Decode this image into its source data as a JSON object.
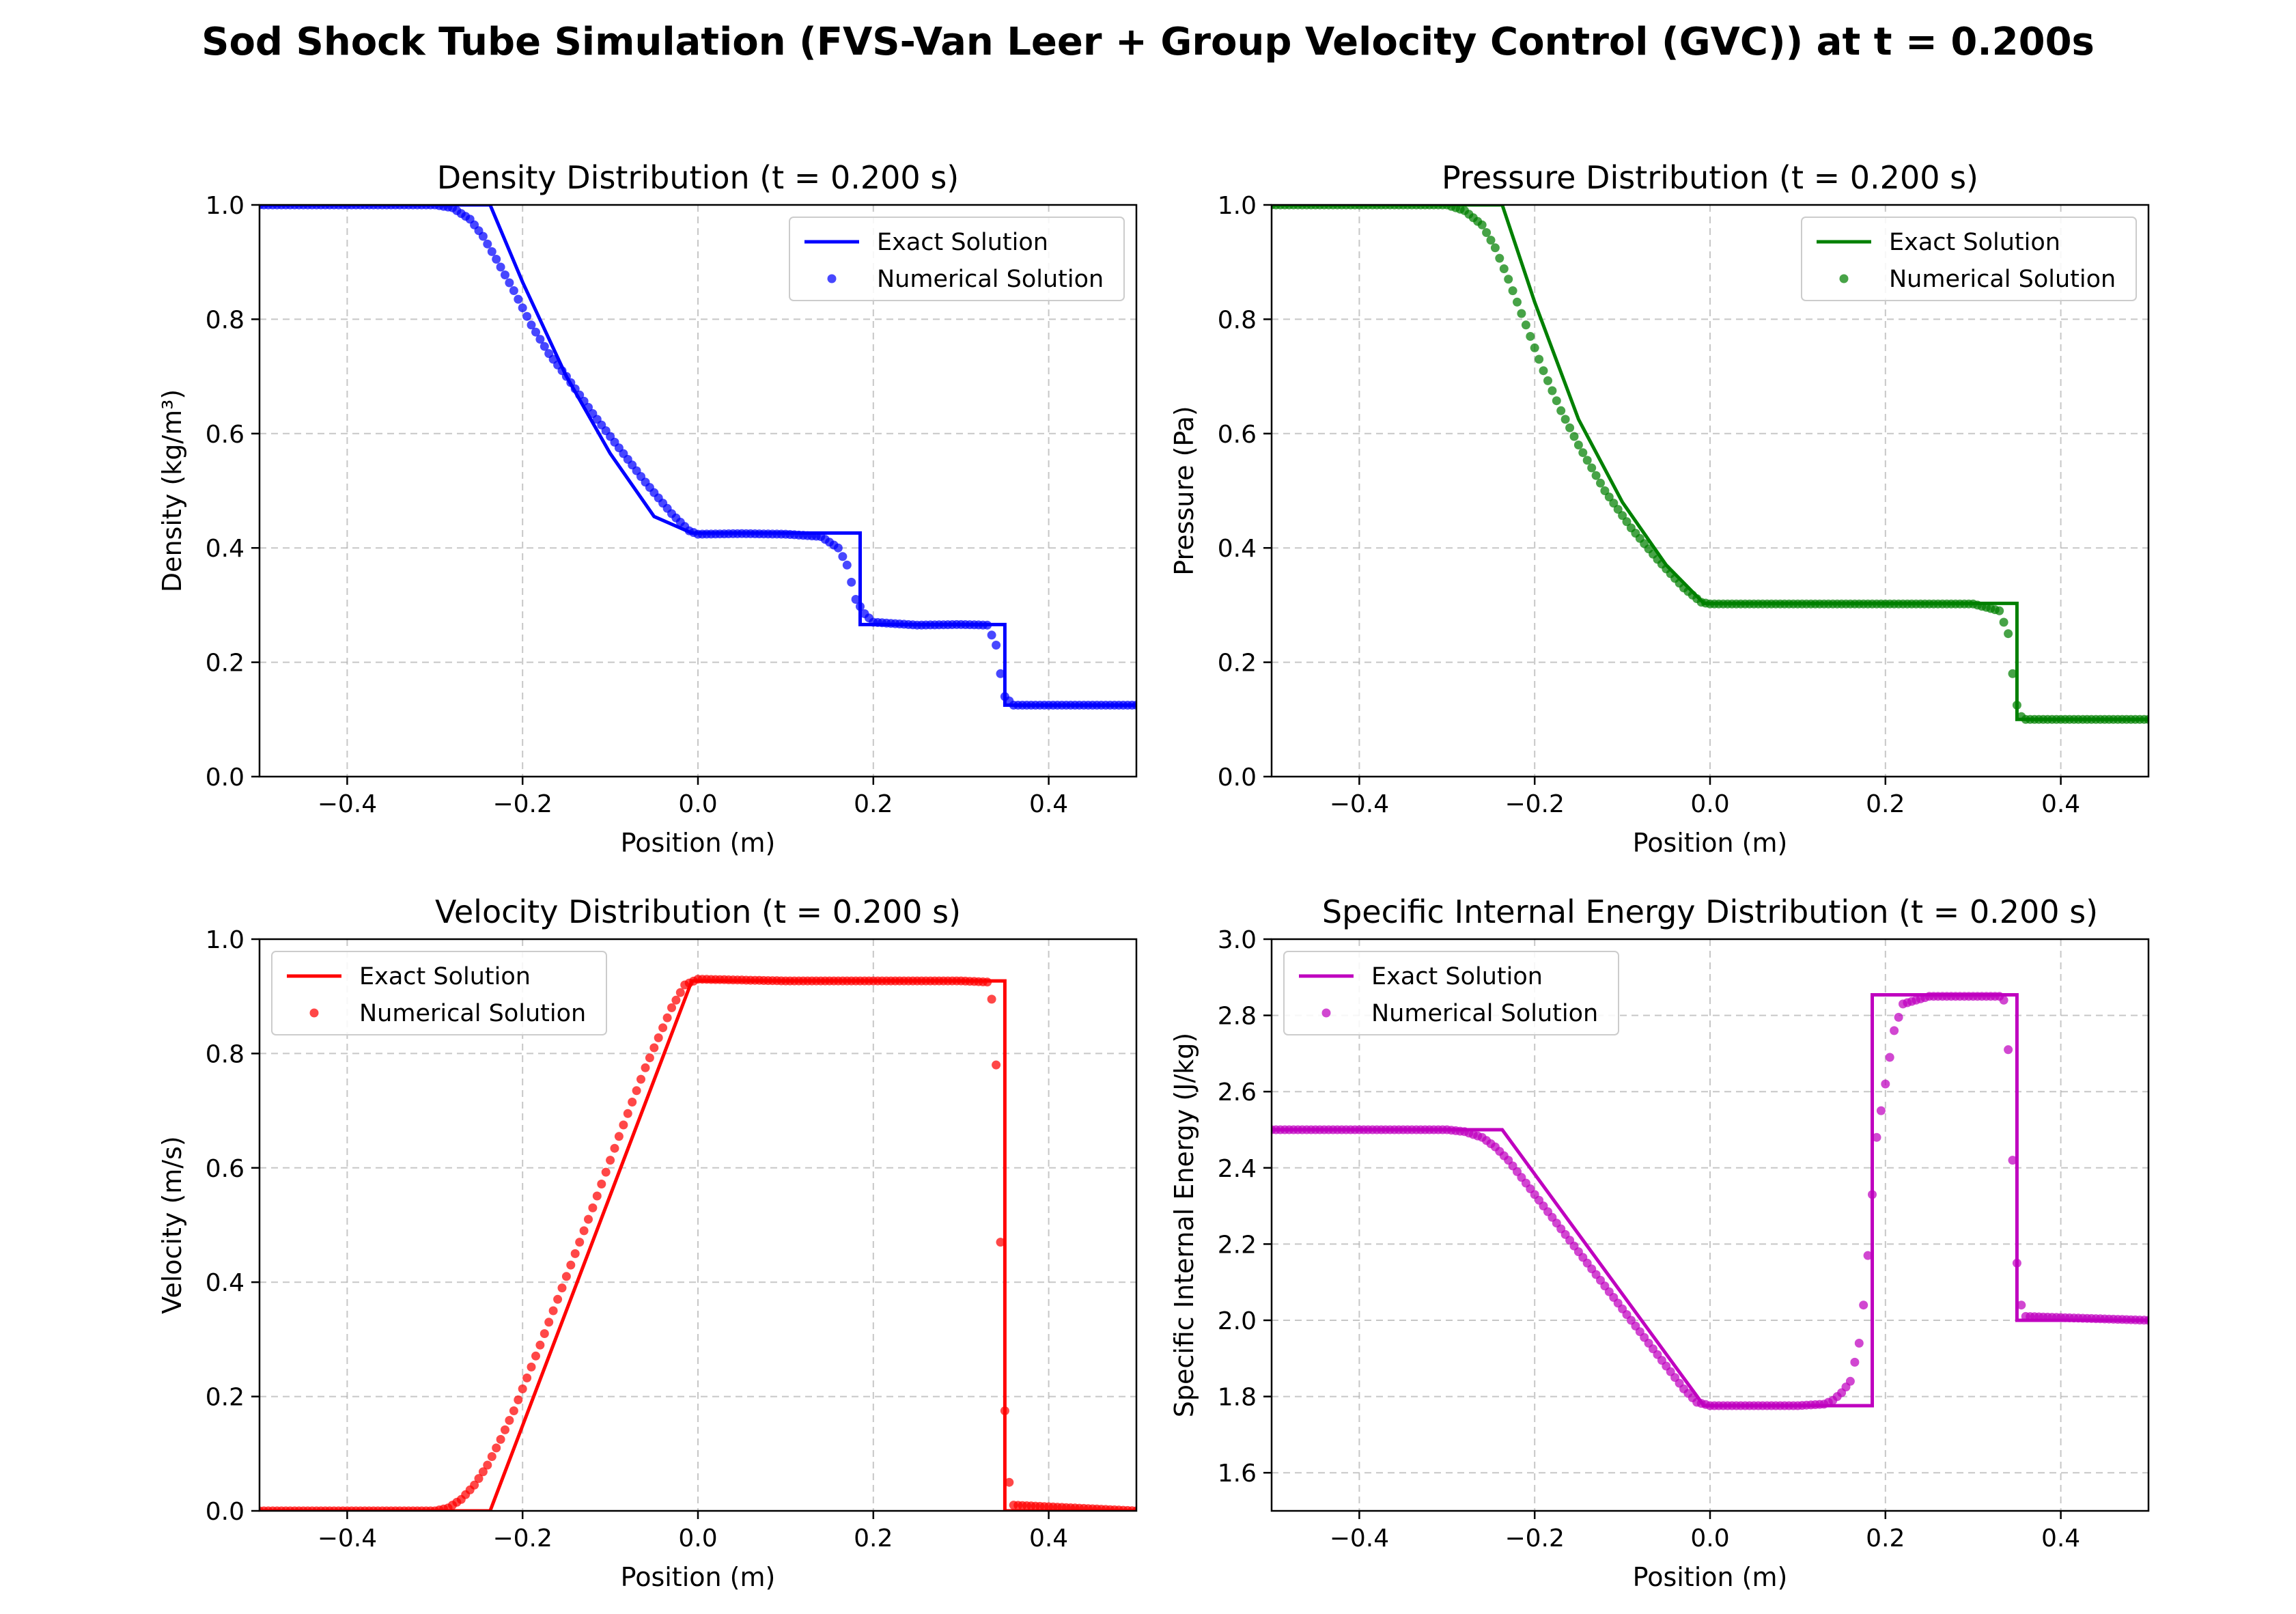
{
  "figure": {
    "title": "Sod Shock Tube Simulation (FVS-Van Leer + Group Velocity Control (GVC)) at t = 0.200s"
  },
  "chart_data": [
    {
      "id": "density",
      "type": "line",
      "title": "Density Distribution (t = 0.200 s)",
      "xlabel": "Position (m)",
      "ylabel": "Density (kg/m³)",
      "xlim": [
        -0.5,
        0.5
      ],
      "ylim": [
        0.0,
        1.0
      ],
      "xticks": [
        -0.4,
        -0.2,
        0.0,
        0.2,
        0.4
      ],
      "yticks": [
        0.0,
        0.2,
        0.4,
        0.6,
        0.8,
        1.0
      ],
      "xtick_labels": [
        "−0.4",
        "−0.2",
        "0.0",
        "0.2",
        "0.4"
      ],
      "ytick_labels": [
        "0.0",
        "0.2",
        "0.4",
        "0.6",
        "0.8",
        "1.0"
      ],
      "grid": true,
      "legend": "top-right",
      "color": "#0000ff",
      "series": [
        {
          "name": "Exact Solution",
          "kind": "line",
          "x": [
            -0.5,
            -0.237,
            -0.2,
            -0.15,
            -0.1,
            -0.05,
            -0.007,
            0.185,
            0.185,
            0.35,
            0.35,
            0.5
          ],
          "y": [
            1.0,
            1.0,
            0.865,
            0.7,
            0.565,
            0.455,
            0.426,
            0.426,
            0.266,
            0.266,
            0.125,
            0.125
          ]
        },
        {
          "name": "Numerical Solution",
          "kind": "scatter",
          "x": [
            -0.5,
            -0.3,
            -0.28,
            -0.26,
            -0.245,
            -0.23,
            -0.21,
            -0.19,
            -0.17,
            -0.15,
            -0.12,
            -0.09,
            -0.06,
            -0.03,
            -0.01,
            0.0,
            0.05,
            0.1,
            0.14,
            0.16,
            0.17,
            0.175,
            0.18,
            0.19,
            0.2,
            0.25,
            0.3,
            0.33,
            0.34,
            0.345,
            0.35,
            0.36,
            0.5
          ],
          "y": [
            1.0,
            1.0,
            0.995,
            0.975,
            0.945,
            0.905,
            0.85,
            0.79,
            0.74,
            0.7,
            0.635,
            0.575,
            0.515,
            0.46,
            0.43,
            0.424,
            0.425,
            0.424,
            0.42,
            0.4,
            0.37,
            0.34,
            0.31,
            0.285,
            0.27,
            0.265,
            0.266,
            0.265,
            0.23,
            0.18,
            0.14,
            0.125,
            0.125
          ]
        }
      ]
    },
    {
      "id": "pressure",
      "type": "line",
      "title": "Pressure Distribution (t = 0.200 s)",
      "xlabel": "Position (m)",
      "ylabel": "Pressure (Pa)",
      "xlim": [
        -0.5,
        0.5
      ],
      "ylim": [
        0.0,
        1.0
      ],
      "xticks": [
        -0.4,
        -0.2,
        0.0,
        0.2,
        0.4
      ],
      "yticks": [
        0.0,
        0.2,
        0.4,
        0.6,
        0.8,
        1.0
      ],
      "xtick_labels": [
        "−0.4",
        "−0.2",
        "0.0",
        "0.2",
        "0.4"
      ],
      "ytick_labels": [
        "0.0",
        "0.2",
        "0.4",
        "0.6",
        "0.8",
        "1.0"
      ],
      "grid": true,
      "legend": "top-right",
      "color": "#008000",
      "series": [
        {
          "name": "Exact Solution",
          "kind": "line",
          "x": [
            -0.5,
            -0.237,
            -0.2,
            -0.15,
            -0.1,
            -0.05,
            -0.007,
            0.35,
            0.35,
            0.5
          ],
          "y": [
            1.0,
            1.0,
            0.83,
            0.625,
            0.48,
            0.37,
            0.303,
            0.303,
            0.1,
            0.1
          ]
        },
        {
          "name": "Numerical Solution",
          "kind": "scatter",
          "x": [
            -0.5,
            -0.3,
            -0.28,
            -0.26,
            -0.245,
            -0.23,
            -0.21,
            -0.19,
            -0.17,
            -0.15,
            -0.12,
            -0.09,
            -0.06,
            -0.03,
            -0.01,
            0.0,
            0.1,
            0.2,
            0.3,
            0.33,
            0.34,
            0.345,
            0.35,
            0.355,
            0.36,
            0.5
          ],
          "y": [
            1.0,
            1.0,
            0.99,
            0.965,
            0.925,
            0.87,
            0.79,
            0.71,
            0.64,
            0.58,
            0.5,
            0.435,
            0.38,
            0.33,
            0.305,
            0.302,
            0.302,
            0.302,
            0.302,
            0.29,
            0.25,
            0.18,
            0.125,
            0.105,
            0.1,
            0.1
          ]
        }
      ]
    },
    {
      "id": "velocity",
      "type": "line",
      "title": "Velocity Distribution (t = 0.200 s)",
      "xlabel": "Position (m)",
      "ylabel": "Velocity (m/s)",
      "xlim": [
        -0.5,
        0.5
      ],
      "ylim": [
        0.0,
        1.0
      ],
      "xticks": [
        -0.4,
        -0.2,
        0.0,
        0.2,
        0.4
      ],
      "yticks": [
        0.0,
        0.2,
        0.4,
        0.6,
        0.8,
        1.0
      ],
      "xtick_labels": [
        "−0.4",
        "−0.2",
        "0.0",
        "0.2",
        "0.4"
      ],
      "ytick_labels": [
        "0.0",
        "0.2",
        "0.4",
        "0.6",
        "0.8",
        "1.0"
      ],
      "grid": true,
      "legend": "top-left",
      "color": "#ff0000",
      "series": [
        {
          "name": "Exact Solution",
          "kind": "line",
          "x": [
            -0.5,
            -0.237,
            -0.007,
            0.35,
            0.35,
            0.5
          ],
          "y": [
            0.0,
            0.0,
            0.927,
            0.927,
            0.0,
            0.0
          ]
        },
        {
          "name": "Numerical Solution",
          "kind": "scatter",
          "x": [
            -0.5,
            -0.3,
            -0.285,
            -0.27,
            -0.255,
            -0.24,
            -0.225,
            -0.21,
            -0.18,
            -0.15,
            -0.12,
            -0.09,
            -0.06,
            -0.03,
            -0.015,
            0.0,
            0.1,
            0.2,
            0.3,
            0.33,
            0.335,
            0.34,
            0.345,
            0.35,
            0.355,
            0.36,
            0.5
          ],
          "y": [
            0.0,
            0.0,
            0.005,
            0.02,
            0.045,
            0.08,
            0.125,
            0.175,
            0.29,
            0.41,
            0.53,
            0.655,
            0.775,
            0.88,
            0.92,
            0.93,
            0.927,
            0.927,
            0.927,
            0.925,
            0.895,
            0.78,
            0.47,
            0.175,
            0.05,
            0.01,
            0.0
          ]
        }
      ]
    },
    {
      "id": "energy",
      "type": "line",
      "title": "Specific Internal Energy Distribution (t = 0.200 s)",
      "xlabel": "Position (m)",
      "ylabel": "Specific Internal Energy (J/kg)",
      "xlim": [
        -0.5,
        0.5
      ],
      "ylim": [
        1.5,
        3.0
      ],
      "xticks": [
        -0.4,
        -0.2,
        0.0,
        0.2,
        0.4
      ],
      "yticks": [
        1.6,
        1.8,
        2.0,
        2.2,
        2.4,
        2.6,
        2.8,
        3.0
      ],
      "xtick_labels": [
        "−0.4",
        "−0.2",
        "0.0",
        "0.2",
        "0.4"
      ],
      "ytick_labels": [
        "1.6",
        "1.8",
        "2.0",
        "2.2",
        "2.4",
        "2.6",
        "2.8",
        "3.0"
      ],
      "grid": true,
      "legend": "top-left",
      "color": "#bf00bf",
      "series": [
        {
          "name": "Exact Solution",
          "kind": "line",
          "x": [
            -0.5,
            -0.237,
            -0.007,
            0.185,
            0.185,
            0.35,
            0.35,
            0.5
          ],
          "y": [
            2.5,
            2.5,
            1.776,
            1.776,
            2.854,
            2.854,
            2.0,
            2.0
          ]
        },
        {
          "name": "Numerical Solution",
          "kind": "scatter",
          "x": [
            -0.5,
            -0.3,
            -0.28,
            -0.26,
            -0.245,
            -0.23,
            -0.21,
            -0.18,
            -0.15,
            -0.12,
            -0.09,
            -0.06,
            -0.03,
            -0.015,
            0.0,
            0.05,
            0.1,
            0.13,
            0.14,
            0.15,
            0.16,
            0.17,
            0.175,
            0.18,
            0.185,
            0.19,
            0.2,
            0.21,
            0.22,
            0.25,
            0.3,
            0.33,
            0.335,
            0.34,
            0.345,
            0.35,
            0.355,
            0.36,
            0.5
          ],
          "y": [
            2.5,
            2.5,
            2.495,
            2.48,
            2.455,
            2.42,
            2.36,
            2.27,
            2.18,
            2.09,
            2.0,
            1.91,
            1.82,
            1.785,
            1.776,
            1.776,
            1.776,
            1.78,
            1.79,
            1.81,
            1.84,
            1.94,
            2.04,
            2.17,
            2.33,
            2.48,
            2.62,
            2.76,
            2.83,
            2.85,
            2.85,
            2.85,
            2.84,
            2.71,
            2.42,
            2.15,
            2.04,
            2.01,
            2.0
          ]
        }
      ]
    }
  ]
}
